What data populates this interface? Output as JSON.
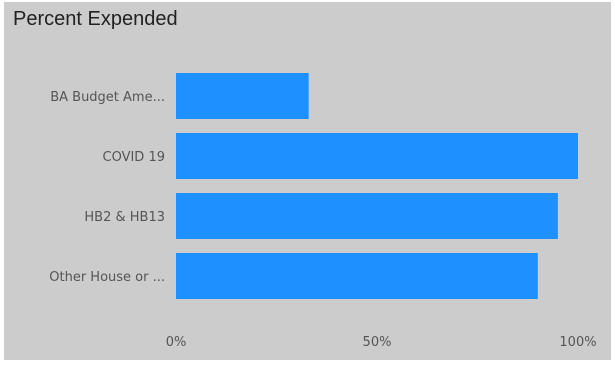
{
  "visual": {
    "title": "Percent Expended"
  },
  "chart_data": {
    "type": "bar",
    "orientation": "horizontal",
    "title": "Percent Expended",
    "categories": [
      "BA Budget Ame...",
      "COVID 19",
      "HB2 & HB13",
      "Other House or ..."
    ],
    "values": [
      0.33,
      1.0,
      0.95,
      0.9
    ],
    "value_format": "percent",
    "xlim": [
      0,
      1.0
    ],
    "x_ticks": [
      0,
      0.5,
      1.0
    ],
    "x_tick_labels": [
      "0%",
      "50%",
      "100%"
    ],
    "bar_color": "#1e90ff",
    "grid": false,
    "legend": "none"
  },
  "colors": {
    "card_background": "#cccccc",
    "bar": "#1e90ff",
    "label_text": "#555555",
    "title_text": "#222222"
  }
}
